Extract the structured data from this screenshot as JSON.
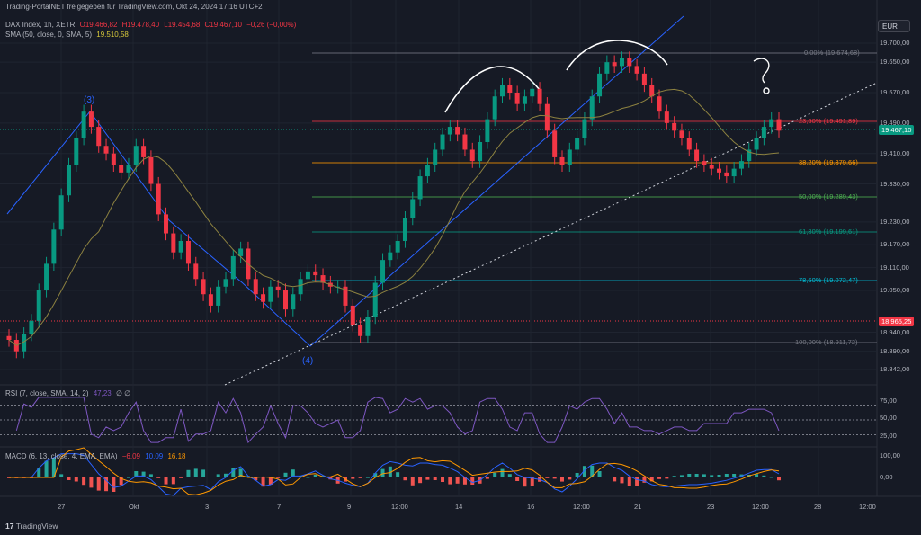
{
  "watermark": "Trading-PortalNET freigegeben für TradingView.com, Okt 24, 2024 17:16 UTC+2",
  "ohlc": {
    "symbol": "DAX Index, 1h, XETR",
    "o": "O19.466,82",
    "h": "H19.478,40",
    "l": "L19.454,68",
    "c": "C19.467,10",
    "chg": "−0,26 (−0,00%)",
    "color": "#f23645"
  },
  "sma": {
    "label": "SMA (50, close, 0, SMA, 5)",
    "value": "19.510,58",
    "color": "#d6c83a"
  },
  "currency_button": "EUR",
  "price_axis": [
    "19.700,00",
    "19.650,00",
    "19.570,00",
    "19.490,00",
    "19.410,00",
    "19.330,00",
    "19.310,00",
    "19.230,00",
    "19.170,00",
    "19.110,00",
    "19.050,00",
    "18.940,00",
    "18.890,00",
    "18.842,00"
  ],
  "price_axis_shown": [
    "19.700,00",
    "19.650,00",
    "19.570,00",
    "19.490,00",
    "19.410,00",
    "19.330,00",
    "19.230,00",
    "19.170,00",
    "19.110,00",
    "19.050,00",
    "18.940,00",
    "18.890,00",
    "18.842,00"
  ],
  "current_price": {
    "value": "19.467,10",
    "color": "#089981"
  },
  "marker_price": {
    "value": "18.965,25",
    "color": "#f23645"
  },
  "fib_levels": [
    {
      "label": "0,00% (19.674,68)",
      "color": "#787b86"
    },
    {
      "label": "23,60% (19.491,89)",
      "color": "#f23645"
    },
    {
      "label": "38,20% (19.379,66)",
      "color": "#ff9800"
    },
    {
      "label": "50,00% (19.289,43)",
      "color": "#4caf50"
    },
    {
      "label": "61,80% (19.199,61)",
      "color": "#089981"
    },
    {
      "label": "78,60% (19.072,47)",
      "color": "#00bcd4"
    },
    {
      "label": "100,00% (18.911,72)",
      "color": "#787b86"
    }
  ],
  "waves": {
    "w3": "(3)",
    "w4": "(4)",
    "color": "#2962ff"
  },
  "rsi": {
    "label": "RSI (7, close, SMA, 14, 2)",
    "value": "47,23",
    "extra": "∅ ∅",
    "axis": [
      "75,00",
      "50,00",
      "25,00"
    ],
    "color": "#7e57c2"
  },
  "macd": {
    "label": "MACD (6, 13, close, 4, EMA, EMA)",
    "v1": "−6,09",
    "v2": "10,09",
    "v3": "16,18",
    "axis": [
      "100,00",
      "0,00"
    ],
    "c1": "#f23645",
    "c2": "#2962ff",
    "c3": "#ff9800"
  },
  "time_axis": [
    "27",
    "Okt",
    "3",
    "7",
    "9",
    "12:00",
    "14",
    "16",
    "12:00",
    "21",
    "23",
    "12:00",
    "28",
    "12:00"
  ],
  "logo_text": "TradingView",
  "chart_data": {
    "type": "candlestick",
    "closes": [
      18920,
      18890,
      18935,
      18970,
      19050,
      19120,
      19210,
      19300,
      19380,
      19450,
      19520,
      19480,
      19430,
      19410,
      19380,
      19360,
      19380,
      19430,
      19400,
      19330,
      19250,
      19200,
      19150,
      19180,
      19120,
      19080,
      19040,
      19010,
      19060,
      19080,
      19140,
      19160,
      19080,
      19040,
      19020,
      19060,
      19050,
      19000,
      19040,
      19080,
      19100,
      19090,
      19070,
      19060,
      19060,
      19010,
      18960,
      18930,
      18980,
      19070,
      19130,
      19150,
      19180,
      19240,
      19290,
      19350,
      19380,
      19420,
      19460,
      19480,
      19460,
      19420,
      19390,
      19440,
      19500,
      19560,
      19590,
      19570,
      19540,
      19560,
      19580,
      19540,
      19470,
      19400,
      19380,
      19420,
      19450,
      19500,
      19560,
      19620,
      19650,
      19640,
      19660,
      19640,
      19620,
      19590,
      19560,
      19520,
      19490,
      19470,
      19450,
      19420,
      19390,
      19380,
      19370,
      19360,
      19350,
      19370,
      19390,
      19420,
      19450,
      19480,
      19500,
      19470
    ],
    "sma_value": "19.510,58"
  }
}
